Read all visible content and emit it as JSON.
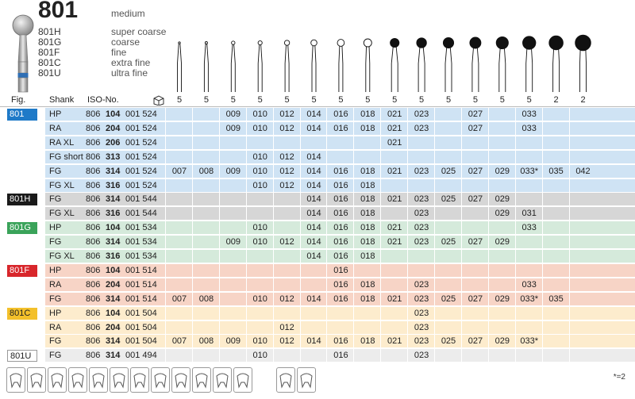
{
  "product": {
    "code": "801",
    "grade": "medium",
    "variants": [
      {
        "code": "801H",
        "desc": "super coarse"
      },
      {
        "code": "801G",
        "desc": "coarse"
      },
      {
        "code": "801F",
        "desc": "fine"
      },
      {
        "code": "801C",
        "desc": "extra fine"
      },
      {
        "code": "801U",
        "desc": "ultra fine"
      }
    ]
  },
  "header": {
    "fig": "Fig.",
    "shank": "Shank",
    "iso": "ISO-No.",
    "pack_counts": [
      "5",
      "5",
      "5",
      "5",
      "5",
      "5",
      "5",
      "5",
      "5",
      "5",
      "5",
      "5",
      "5",
      "5",
      "2",
      "2"
    ]
  },
  "rows": [
    {
      "group": "801",
      "fig": "801",
      "shank": "HP",
      "iso_a": "806",
      "iso_b": "104",
      "iso_c": "001 524",
      "sizes": [
        "",
        "",
        "009",
        "010",
        "012",
        "014",
        "016",
        "018",
        "021",
        "023",
        "",
        "027",
        "",
        "033",
        "",
        ""
      ]
    },
    {
      "group": "801",
      "fig": "",
      "shank": "RA",
      "iso_a": "806",
      "iso_b": "204",
      "iso_c": "001 524",
      "sizes": [
        "",
        "",
        "009",
        "010",
        "012",
        "014",
        "016",
        "018",
        "021",
        "023",
        "",
        "027",
        "",
        "033",
        "",
        ""
      ]
    },
    {
      "group": "801",
      "fig": "",
      "shank": "RA XL",
      "iso_a": "806",
      "iso_b": "206",
      "iso_c": "001 524",
      "sizes": [
        "",
        "",
        "",
        "",
        "",
        "",
        "",
        "",
        "021",
        "",
        "",
        "",
        "",
        "",
        "",
        ""
      ]
    },
    {
      "group": "801",
      "fig": "",
      "shank": "FG short",
      "iso_a": "806",
      "iso_b": "313",
      "iso_c": "001 524",
      "sizes": [
        "",
        "",
        "",
        "010",
        "012",
        "014",
        "",
        "",
        "",
        "",
        "",
        "",
        "",
        "",
        "",
        ""
      ]
    },
    {
      "group": "801",
      "fig": "",
      "shank": "FG",
      "iso_a": "806",
      "iso_b": "314",
      "iso_c": "001 524",
      "sizes": [
        "007",
        "008",
        "009",
        "010",
        "012",
        "014",
        "016",
        "018",
        "021",
        "023",
        "025",
        "027",
        "029",
        "033*",
        "035",
        "042"
      ]
    },
    {
      "group": "801",
      "fig": "",
      "shank": "FG XL",
      "iso_a": "806",
      "iso_b": "316",
      "iso_c": "001 524",
      "sizes": [
        "",
        "",
        "",
        "010",
        "012",
        "014",
        "016",
        "018",
        "",
        "",
        "",
        "",
        "",
        "",
        "",
        ""
      ]
    },
    {
      "group": "801H",
      "fig": "801H",
      "shank": "FG",
      "iso_a": "806",
      "iso_b": "314",
      "iso_c": "001 544",
      "sizes": [
        "",
        "",
        "",
        "",
        "",
        "014",
        "016",
        "018",
        "021",
        "023",
        "025",
        "027",
        "029",
        "",
        "",
        ""
      ]
    },
    {
      "group": "801H",
      "fig": "",
      "shank": "FG XL",
      "iso_a": "806",
      "iso_b": "316",
      "iso_c": "001 544",
      "sizes": [
        "",
        "",
        "",
        "",
        "",
        "014",
        "016",
        "018",
        "",
        "023",
        "",
        "",
        "029",
        "031",
        "",
        ""
      ]
    },
    {
      "group": "801G",
      "fig": "801G",
      "shank": "HP",
      "iso_a": "806",
      "iso_b": "104",
      "iso_c": "001 534",
      "sizes": [
        "",
        "",
        "",
        "010",
        "",
        "014",
        "016",
        "018",
        "021",
        "023",
        "",
        "",
        "",
        "033",
        "",
        ""
      ]
    },
    {
      "group": "801G",
      "fig": "",
      "shank": "FG",
      "iso_a": "806",
      "iso_b": "314",
      "iso_c": "001 534",
      "sizes": [
        "",
        "",
        "009",
        "010",
        "012",
        "014",
        "016",
        "018",
        "021",
        "023",
        "025",
        "027",
        "029",
        "",
        "",
        ""
      ]
    },
    {
      "group": "801G",
      "fig": "",
      "shank": "FG XL",
      "iso_a": "806",
      "iso_b": "316",
      "iso_c": "001 534",
      "sizes": [
        "",
        "",
        "",
        "",
        "",
        "014",
        "016",
        "018",
        "",
        "",
        "",
        "",
        "",
        "",
        "",
        ""
      ]
    },
    {
      "group": "801F",
      "fig": "801F",
      "shank": "HP",
      "iso_a": "806",
      "iso_b": "104",
      "iso_c": "001 514",
      "sizes": [
        "",
        "",
        "",
        "",
        "",
        "",
        "016",
        "",
        "",
        "",
        "",
        "",
        "",
        "",
        "",
        ""
      ]
    },
    {
      "group": "801F",
      "fig": "",
      "shank": "RA",
      "iso_a": "806",
      "iso_b": "204",
      "iso_c": "001 514",
      "sizes": [
        "",
        "",
        "",
        "",
        "",
        "",
        "016",
        "018",
        "",
        "023",
        "",
        "",
        "",
        "033",
        "",
        ""
      ]
    },
    {
      "group": "801F",
      "fig": "",
      "shank": "FG",
      "iso_a": "806",
      "iso_b": "314",
      "iso_c": "001 514",
      "sizes": [
        "007",
        "008",
        "",
        "010",
        "012",
        "014",
        "016",
        "018",
        "021",
        "023",
        "025",
        "027",
        "029",
        "033*",
        "035",
        ""
      ]
    },
    {
      "group": "801C",
      "fig": "801C",
      "shank": "HP",
      "iso_a": "806",
      "iso_b": "104",
      "iso_c": "001 504",
      "sizes": [
        "",
        "",
        "",
        "",
        "",
        "",
        "",
        "",
        "",
        "023",
        "",
        "",
        "",
        "",
        "",
        ""
      ]
    },
    {
      "group": "801C",
      "fig": "",
      "shank": "RA",
      "iso_a": "806",
      "iso_b": "204",
      "iso_c": "001 504",
      "sizes": [
        "",
        "",
        "",
        "",
        "012",
        "",
        "",
        "",
        "",
        "023",
        "",
        "",
        "",
        "",
        "",
        ""
      ]
    },
    {
      "group": "801C",
      "fig": "",
      "shank": "FG",
      "iso_a": "806",
      "iso_b": "314",
      "iso_c": "001 504",
      "sizes": [
        "007",
        "008",
        "009",
        "010",
        "012",
        "014",
        "016",
        "018",
        "021",
        "023",
        "025",
        "027",
        "029",
        "033*",
        "",
        ""
      ]
    },
    {
      "group": "801U",
      "fig": "801U",
      "shank": "FG",
      "iso_a": "806",
      "iso_b": "314",
      "iso_c": "001 494",
      "sizes": [
        "",
        "",
        "",
        "010",
        "",
        "",
        "016",
        "",
        "",
        "023",
        "",
        "",
        "",
        "",
        "",
        ""
      ]
    }
  ],
  "groups": {
    "801": {
      "tag_bg": "#1f7ac8",
      "tag_fg": "#ffffff",
      "row_bg": "#cfe3f4"
    },
    "801H": {
      "tag_bg": "#1a1a1a",
      "tag_fg": "#ffffff",
      "row_bg": "#d6d6d6"
    },
    "801G": {
      "tag_bg": "#3aa35a",
      "tag_fg": "#ffffff",
      "row_bg": "#d5eadb"
    },
    "801F": {
      "tag_bg": "#d8262b",
      "tag_fg": "#ffffff",
      "row_bg": "#f7d4c6"
    },
    "801C": {
      "tag_bg": "#f3c02b",
      "tag_fg": "#222222",
      "row_bg": "#fdeccd"
    },
    "801U": {
      "tag_bg": "#ffffff",
      "tag_fg": "#222222",
      "row_bg": "#ececec"
    }
  },
  "footer": {
    "icons": [
      "class-i-cavity-icon",
      "class-ii-cavity-icon",
      "crown-prep-icon",
      "occlusal-icon",
      "inlay-icon",
      "endo-icon",
      "veneer-icon",
      "root-canal-icon",
      "instrument-icon",
      "bridge-icon",
      "implant-icon",
      "denture-icon",
      "sterilize-135-icon",
      "ultrasonic-icon"
    ],
    "note": "*=2"
  }
}
